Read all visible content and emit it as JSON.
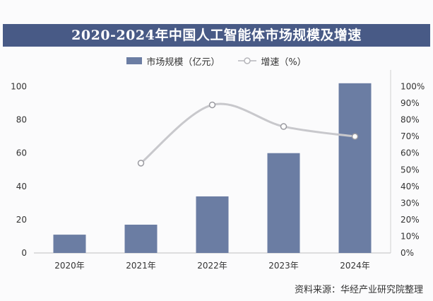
{
  "title": "2020-2024年中国人工智能体市场规模及增速",
  "source": "资料来源：华经产业研究院整理",
  "colors": {
    "bar": "#6b7da3",
    "line": "#c8c8cc",
    "title_bg": "#485a86"
  },
  "chart_data": {
    "type": "bar",
    "title": "2020-2024年中国人工智能体市场规模及增速",
    "categories": [
      "2020年",
      "2021年",
      "2022年",
      "2023年",
      "2024年"
    ],
    "series": [
      {
        "name": "市场规模（亿元）",
        "type": "bar",
        "axis": "left",
        "values": [
          11,
          17,
          34,
          60,
          102
        ]
      },
      {
        "name": "增速（%）",
        "type": "line",
        "axis": "right",
        "values": [
          null,
          54,
          89,
          76,
          70
        ]
      }
    ],
    "y_left": {
      "ticks": [
        0,
        20,
        40,
        60,
        80,
        100
      ],
      "ylim": [
        0,
        110
      ]
    },
    "y_right": {
      "ticks": [
        "0%",
        "10%",
        "20%",
        "30%",
        "40%",
        "50%",
        "60%",
        "70%",
        "80%",
        "90%",
        "100%"
      ],
      "ylim": [
        0,
        110
      ]
    },
    "legend_position": "top-center",
    "grid": false
  }
}
